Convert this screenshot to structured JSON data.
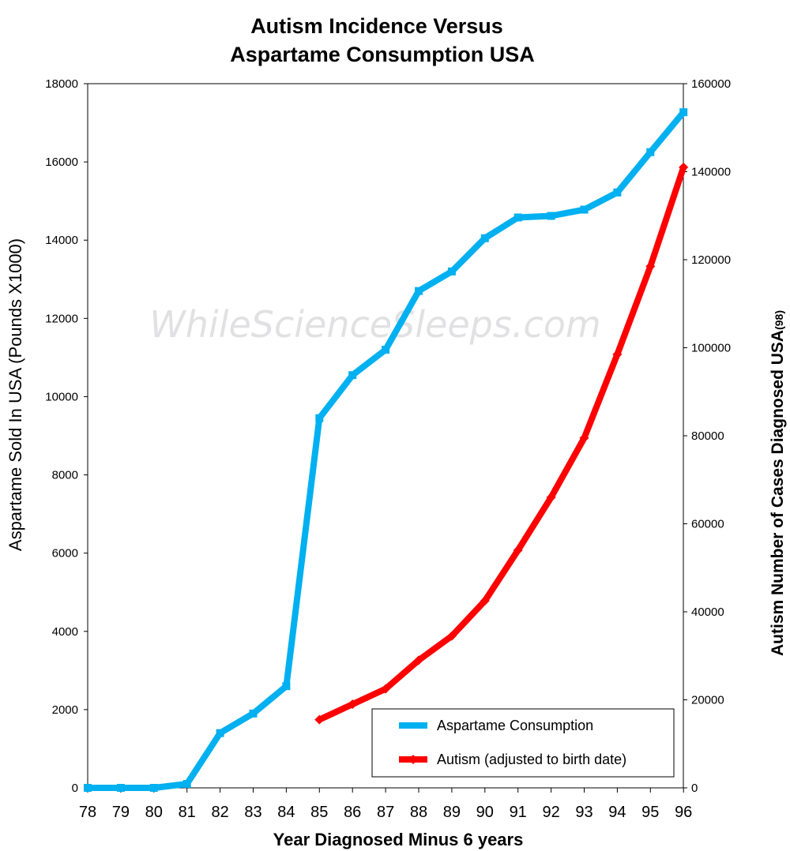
{
  "watermark": "WhileScienceSleeps.com",
  "chart_data": {
    "type": "line",
    "title_line1": "Autism Incidence Versus",
    "title_line2": "Aspartame Consumption USA",
    "xlabel": "Year Diagnosed Minus 6 years",
    "ylabel_left": "Aspartame Sold In USA  (Pounds X1000)",
    "ylabel_right_main": "Autism Number of Cases Diagnosed USA",
    "ylabel_right_sub": "(98)",
    "categories": [
      "78",
      "79",
      "80",
      "81",
      "82",
      "83",
      "84",
      "85",
      "86",
      "87",
      "88",
      "89",
      "90",
      "91",
      "92",
      "93",
      "94",
      "95",
      "96"
    ],
    "ylim_left": [
      0,
      18000
    ],
    "yticks_left": [
      0,
      2000,
      4000,
      6000,
      8000,
      10000,
      12000,
      14000,
      16000,
      18000
    ],
    "ylim_right": [
      0,
      160000
    ],
    "yticks_right": [
      0,
      20000,
      40000,
      60000,
      80000,
      100000,
      120000,
      140000,
      160000
    ],
    "grid": false,
    "legend_position": "bottom-right",
    "series": [
      {
        "name": "Aspartame Consumption",
        "axis": "left",
        "color": "#00b0f0",
        "marker": "square",
        "values": [
          0,
          0,
          0,
          100,
          1400,
          1900,
          2600,
          9450,
          10550,
          11200,
          12700,
          13200,
          14050,
          14580,
          14620,
          14780,
          15220,
          16250,
          17270
        ]
      },
      {
        "name": "Autism (adjusted to birth date)",
        "axis": "right",
        "color": "#ff0000",
        "marker": "diamond",
        "values": [
          null,
          null,
          null,
          null,
          null,
          null,
          null,
          15500,
          19000,
          22500,
          29000,
          34500,
          42500,
          54000,
          66000,
          79500,
          98500,
          118500,
          141000
        ]
      }
    ]
  }
}
